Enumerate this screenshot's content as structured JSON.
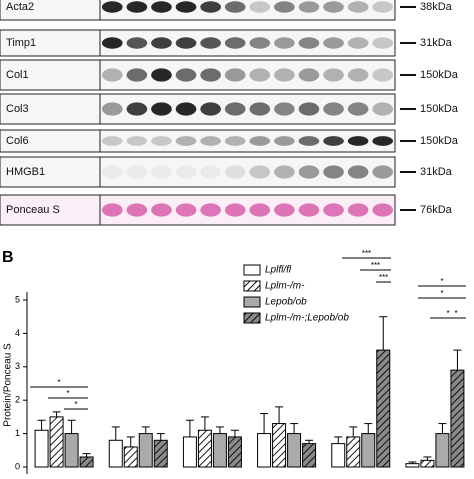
{
  "blots": {
    "rows": [
      {
        "label": "Acta2",
        "marker": "38kDa"
      },
      {
        "label": "Timp1",
        "marker": "31kDa"
      },
      {
        "label": "Col1",
        "marker": "150kDa"
      },
      {
        "label": "Col3",
        "marker": "150kDa"
      },
      {
        "label": "Col6",
        "marker": "150kDa"
      },
      {
        "label": "HMGB1",
        "marker": "31kDa"
      },
      {
        "label": "Ponceau S",
        "marker": "76kDa"
      }
    ]
  },
  "chart_data": {
    "type": "bar",
    "panel_label": "B",
    "y_label": "Protein/Ponceau S",
    "categories": [
      null,
      null,
      null,
      null,
      null,
      null
    ],
    "ylim": [
      0,
      5
    ],
    "yticks": [
      0,
      1,
      2,
      3,
      4,
      5
    ],
    "series": [
      {
        "name": "Lplfl/fl",
        "color": "#ffffff",
        "hatched": false,
        "values": [
          1.1,
          0.8,
          0.9,
          1.0,
          0.7,
          0.1
        ],
        "errors": [
          0.3,
          0.4,
          0.5,
          0.6,
          0.2,
          0.05
        ]
      },
      {
        "name": "Lplm-/m-",
        "color": "#ffffff",
        "hatched": true,
        "values": [
          1.5,
          0.6,
          1.1,
          1.3,
          0.9,
          0.2
        ],
        "errors": [
          0.15,
          0.3,
          0.4,
          0.5,
          0.3,
          0.1
        ]
      },
      {
        "name": "Lepob/ob",
        "color": "#aaaaaa",
        "hatched": false,
        "values": [
          1.0,
          1.0,
          1.0,
          1.0,
          1.0,
          1.0
        ],
        "errors": [
          0.4,
          0.2,
          0.2,
          0.3,
          0.3,
          0.3
        ]
      },
      {
        "name": "Lplm-/m-;Lepob/ob",
        "color": "#8a8a8a",
        "hatched": true,
        "values": [
          0.3,
          0.8,
          0.9,
          0.7,
          3.5,
          2.9
        ],
        "errors": [
          0.1,
          0.2,
          0.2,
          0.1,
          1.0,
          0.6
        ]
      }
    ],
    "annotations": [
      "*",
      "*",
      "*",
      "***",
      "***",
      "***",
      "*",
      "*",
      "*",
      "*"
    ]
  }
}
